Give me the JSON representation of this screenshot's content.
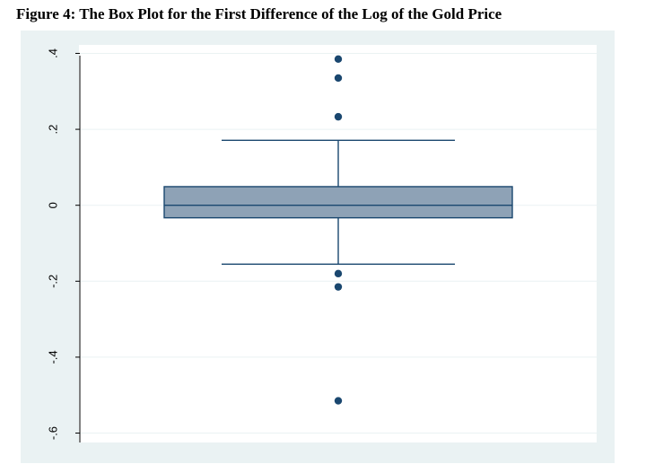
{
  "figure": {
    "title": "Figure 4: The Box Plot for the First Difference of the Log of the Gold Price"
  },
  "colors": {
    "outer_background": "#eaf2f3",
    "plot_background": "#ffffff",
    "box_fill": "#8ea2b6",
    "stroke": "#1a476f",
    "gridline": "#eaf2f3",
    "axis": "#000000"
  },
  "chart_data": {
    "type": "box",
    "orientation": "vertical",
    "title": "",
    "xlabel": "",
    "ylabel": "",
    "ylim": [
      -0.62,
      0.42
    ],
    "y_ticks": [
      -0.6,
      -0.4,
      -0.2,
      0,
      0.2,
      0.4
    ],
    "y_tick_labels": [
      "-.6",
      "-.4",
      "-.2",
      "0",
      ".2",
      ".4"
    ],
    "grid": true,
    "box": {
      "whisker_low": -0.155,
      "q1": -0.033,
      "median": 0.0,
      "q3": 0.049,
      "whisker_high": 0.171
    },
    "outliers": [
      0.385,
      0.335,
      0.233,
      -0.18,
      -0.215,
      -0.515
    ]
  }
}
